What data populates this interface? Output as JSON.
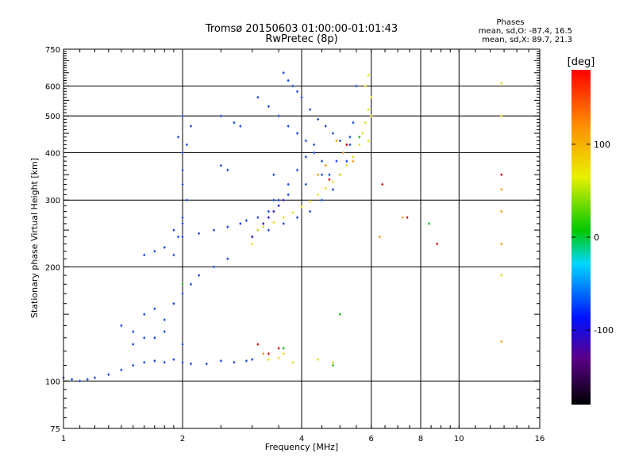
{
  "chart_data": {
    "type": "scatter",
    "title": "Tromsø 20150603 01:00:00-01:01:43",
    "subtitle": "RwPretec (8p)",
    "xlabel": "Frequency [MHz]",
    "ylabel": "Stationary phase Virtual Height [km]",
    "x_scale": "log",
    "y_scale": "log",
    "xlim": [
      1,
      16
    ],
    "ylim": [
      75,
      750
    ],
    "x_ticks": [
      1,
      2,
      4,
      6,
      8,
      10,
      16
    ],
    "x_tick_labels": [
      "1",
      "2",
      "4",
      "6",
      "8",
      "10",
      "16"
    ],
    "y_ticks": [
      75,
      100,
      200,
      300,
      400,
      500,
      600,
      750
    ],
    "y_tick_labels": [
      "75",
      "100",
      "200",
      "300",
      "400",
      "500",
      "600",
      "750"
    ],
    "grid": true,
    "stats": {
      "heading": "Phases",
      "line1": "mean, sd,O: -87.4, 16.5",
      "line2": "mean, sd,X:  89.7, 21.3"
    },
    "colorbar": {
      "label": "[deg]",
      "range": [
        -180,
        180
      ],
      "tick_values": [
        100,
        0,
        -100
      ],
      "tick_labels": [
        "100",
        "0",
        "-100"
      ]
    },
    "series": [
      {
        "phase_deg": -100,
        "color": "#1a4ff0",
        "x": [
          1.0,
          1.05,
          1.1,
          1.15,
          1.2,
          1.3,
          1.4,
          1.5,
          1.6,
          1.7,
          1.8,
          1.9,
          2.0,
          2.1,
          2.3,
          2.5,
          2.7,
          2.9,
          3.0,
          1.4,
          1.5,
          1.6,
          1.7,
          1.8,
          1.9,
          2.0,
          2.1,
          2.2,
          2.4,
          2.6,
          1.5,
          1.6,
          1.7,
          1.8,
          2.0,
          1.9,
          1.95,
          2.0,
          2.05,
          2.0,
          2.0,
          2.0,
          1.95,
          2.05,
          2.1,
          2.0,
          1.9,
          1.6,
          1.7,
          1.8,
          2.0,
          2.2,
          2.4,
          2.6,
          2.8,
          2.9,
          3.1,
          3.3,
          3.5,
          3.7,
          3.9,
          4.1,
          4.3,
          4.5,
          4.7,
          3.0,
          3.3,
          3.6,
          3.9,
          4.2,
          4.5,
          4.8,
          5.0,
          5.2,
          3.1,
          3.3,
          3.5,
          3.7,
          3.9,
          4.1,
          4.3,
          3.6,
          3.7,
          3.8,
          3.9,
          4.0,
          4.2,
          4.4,
          4.6,
          4.8,
          5.0,
          5.2,
          5.3,
          5.4,
          5.5,
          3.4,
          3.7,
          4.1,
          4.5,
          4.9,
          5.3,
          2.5,
          2.7,
          2.8,
          2.5,
          2.6,
          2.0,
          3.4
        ],
        "y": [
          102,
          101,
          100,
          101,
          102,
          104,
          107,
          110,
          112,
          113,
          112,
          114,
          112,
          111,
          111,
          113,
          112,
          113,
          114,
          140,
          135,
          150,
          155,
          145,
          160,
          170,
          180,
          190,
          200,
          210,
          125,
          130,
          130,
          135,
          125,
          215,
          240,
          270,
          300,
          330,
          360,
          400,
          440,
          420,
          470,
          260,
          250,
          215,
          220,
          225,
          240,
          245,
          250,
          255,
          260,
          265,
          270,
          280,
          300,
          330,
          360,
          390,
          400,
          380,
          350,
          240,
          250,
          260,
          270,
          280,
          300,
          320,
          350,
          380,
          560,
          530,
          500,
          470,
          450,
          430,
          420,
          650,
          620,
          600,
          580,
          560,
          520,
          490,
          470,
          450,
          430,
          420,
          440,
          480,
          600,
          300,
          310,
          330,
          350,
          380,
          420,
          500,
          480,
          470,
          370,
          360,
          500,
          350
        ]
      },
      {
        "phase_deg": -115,
        "color": "#3a1bd0",
        "x": [
          3.0,
          3.1,
          3.2,
          3.3,
          3.4,
          3.5,
          3.6
        ],
        "y": [
          240,
          250,
          260,
          270,
          280,
          290,
          300
        ]
      },
      {
        "phase_deg": 100,
        "color": "#e8e020",
        "x": [
          3.2,
          3.4,
          3.6,
          3.8,
          4.0,
          4.2,
          4.4,
          4.6,
          4.8,
          5.0,
          5.2,
          5.4,
          5.6,
          5.7,
          5.8,
          5.9,
          6.0,
          5.8,
          5.9,
          6.0,
          5.9,
          3.3,
          3.5,
          3.6,
          3.8,
          4.8,
          4.4,
          3.1,
          3.0,
          12.8,
          12.8,
          12.8
        ],
        "y": [
          255,
          262,
          270,
          278,
          288,
          298,
          310,
          322,
          335,
          350,
          370,
          390,
          420,
          450,
          480,
          520,
          560,
          600,
          640,
          500,
          430,
          114,
          115,
          118,
          112,
          112,
          114,
          250,
          230,
          610,
          500,
          190
        ]
      },
      {
        "phase_deg": 140,
        "color": "#f0a020",
        "x": [
          4.4,
          4.6,
          4.9,
          5.1,
          5.4,
          6.3,
          3.2,
          7.2,
          12.8,
          12.8,
          12.8,
          12.8
        ],
        "y": [
          350,
          370,
          430,
          400,
          380,
          240,
          118,
          270,
          320,
          280,
          230,
          127
        ]
      },
      {
        "phase_deg": 175,
        "color": "#e81818",
        "x": [
          3.1,
          3.3,
          4.7,
          5.2,
          6.4,
          7.4,
          3.5,
          8.8,
          12.8
        ],
        "y": [
          125,
          118,
          340,
          420,
          330,
          270,
          122,
          230,
          350
        ]
      },
      {
        "phase_deg": 45,
        "color": "#20c020",
        "x": [
          4.8,
          5.0,
          5.6,
          3.6,
          2.0,
          8.4
        ],
        "y": [
          110,
          150,
          440,
          122,
          180,
          260
        ]
      }
    ]
  }
}
